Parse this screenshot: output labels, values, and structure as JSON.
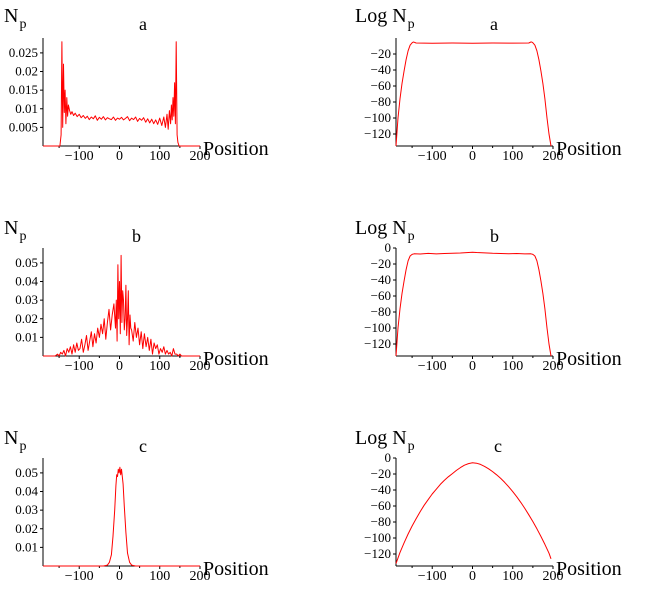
{
  "chart_data": [
    {
      "type": "line",
      "panel_label": "a",
      "ylabel": "N",
      "ylabel_sub": "p",
      "xlabel": "Position",
      "xlim": [
        -190,
        200
      ],
      "ylim": [
        0,
        0.029
      ],
      "xticks": [
        -100,
        0,
        100,
        200
      ],
      "xtick_labels": [
        "−100",
        "0",
        "100",
        "200"
      ],
      "yticks": [
        0.005,
        0.01,
        0.015,
        0.02,
        0.025
      ],
      "ytick_labels": [
        "0.005",
        "0.01",
        "0.015",
        "0.02",
        "0.025"
      ],
      "color": "#ff0000",
      "series": [
        {
          "x": [
            -190,
            -148,
            -145,
            -143,
            -141,
            -139,
            -137,
            -135,
            -133,
            -131,
            -129,
            -127,
            -124,
            -121,
            -118,
            -114,
            -110,
            -105,
            -100,
            -95,
            -90,
            -85,
            -80,
            -75,
            -70,
            -65,
            -60,
            -55,
            -50,
            -45,
            -40,
            -35,
            -30,
            -25,
            -20,
            -15,
            -10,
            -5,
            0,
            5,
            10,
            15,
            20,
            25,
            30,
            35,
            40,
            45,
            50,
            55,
            60,
            65,
            70,
            75,
            80,
            85,
            90,
            95,
            100,
            105,
            110,
            114,
            118,
            121,
            124,
            127,
            129,
            131,
            133,
            135,
            137,
            139,
            141,
            143,
            145,
            148,
            200
          ],
          "y": [
            0,
            0,
            0.003,
            0.028,
            0.005,
            0.022,
            0.009,
            0.015,
            0.006,
            0.013,
            0.008,
            0.011,
            0.0095,
            0.0085,
            0.0092,
            0.0082,
            0.0088,
            0.0079,
            0.0085,
            0.0076,
            0.0082,
            0.0074,
            0.008,
            0.0071,
            0.0078,
            0.0073,
            0.0081,
            0.0069,
            0.0077,
            0.0072,
            0.0079,
            0.007,
            0.0076,
            0.0073,
            0.0071,
            0.0078,
            0.0069,
            0.0075,
            0.0072,
            0.0077,
            0.007,
            0.0074,
            0.0079,
            0.0068,
            0.0075,
            0.0071,
            0.0078,
            0.0066,
            0.0074,
            0.0069,
            0.0076,
            0.0064,
            0.0073,
            0.0062,
            0.0072,
            0.006,
            0.007,
            0.0058,
            0.0075,
            0.0055,
            0.0078,
            0.005,
            0.0085,
            0.0045,
            0.0095,
            0.006,
            0.011,
            0.007,
            0.013,
            0.008,
            0.017,
            0.006,
            0.028,
            0.003,
            0.001,
            0,
            0
          ]
        }
      ]
    },
    {
      "type": "line",
      "panel_label": "a",
      "ylabel": "Log N",
      "ylabel_sub": "p",
      "xlabel": "Position",
      "xlim": [
        -190,
        200
      ],
      "ylim": [
        -135,
        0
      ],
      "xticks": [
        -100,
        0,
        100,
        200
      ],
      "xtick_labels": [
        "−100",
        "0",
        "100",
        "200"
      ],
      "yticks": [
        -20,
        -40,
        -60,
        -80,
        -100,
        -120
      ],
      "ytick_labels": [
        "−20",
        "−40",
        "−60",
        "−80",
        "−100",
        "−120"
      ],
      "color": "#ff0000",
      "series": [
        {
          "x": [
            -190,
            -185,
            -180,
            -175,
            -170,
            -165,
            -160,
            -155,
            -150,
            -147,
            -145,
            -140,
            -100,
            -50,
            0,
            50,
            100,
            140,
            145,
            147,
            150,
            155,
            160,
            165,
            170,
            175,
            180,
            185,
            190,
            195
          ],
          "y": [
            -135,
            -100,
            -76,
            -57,
            -41,
            -27,
            -16,
            -9,
            -6,
            -5,
            -5.2,
            -6.2,
            -6.5,
            -6.2,
            -6.5,
            -6.3,
            -6.4,
            -6.2,
            -5,
            -5,
            -6,
            -9,
            -16,
            -27,
            -41,
            -57,
            -76,
            -100,
            -120,
            -135
          ]
        }
      ]
    },
    {
      "type": "line",
      "panel_label": "b",
      "ylabel": "N",
      "ylabel_sub": "p",
      "xlabel": "Position",
      "xlim": [
        -190,
        200
      ],
      "ylim": [
        0,
        0.058
      ],
      "xticks": [
        -100,
        0,
        100,
        200
      ],
      "xtick_labels": [
        "−100",
        "0",
        "100",
        "200"
      ],
      "yticks": [
        0.01,
        0.02,
        0.03,
        0.04,
        0.05
      ],
      "ytick_labels": [
        "0.01",
        "0.02",
        "0.03",
        "0.04",
        "0.05"
      ],
      "color": "#ff0000",
      "series": [
        {
          "x": [
            -190,
            -160,
            -154,
            -150,
            -146,
            -142,
            -138,
            -134,
            -130,
            -126,
            -122,
            -118,
            -114,
            -110,
            -106,
            -102,
            -98,
            -94,
            -90,
            -86,
            -82,
            -78,
            -74,
            -70,
            -66,
            -62,
            -58,
            -54,
            -50,
            -46,
            -42,
            -38,
            -34,
            -30,
            -26,
            -22,
            -18,
            -14,
            -10,
            -8,
            -6,
            -4,
            -2,
            0,
            2,
            4,
            6,
            8,
            10,
            12,
            14,
            16,
            18,
            20,
            22,
            24,
            26,
            28,
            30,
            34,
            38,
            42,
            46,
            50,
            54,
            58,
            62,
            66,
            70,
            74,
            78,
            82,
            86,
            90,
            94,
            98,
            102,
            106,
            110,
            114,
            118,
            122,
            126,
            130,
            134,
            138,
            142,
            146,
            150,
            154,
            160,
            200
          ],
          "y": [
            0,
            0,
            0.001,
            0,
            0.002,
            0.001,
            0.003,
            0,
            0.004,
            0.002,
            0.005,
            0.001,
            0.006,
            0.002,
            0.007,
            0.003,
            0.004,
            0.009,
            0.002,
            0.006,
            0.011,
            0.003,
            0.008,
            0.013,
            0.005,
            0.012,
            0.007,
            0.015,
            0.01,
            0.017,
            0.012,
            0.02,
            0.009,
            0.018,
            0.025,
            0.014,
            0.022,
            0.028,
            0.015,
            0.03,
            0.008,
            0.049,
            0.02,
            0.04,
            0.012,
            0.054,
            0.018,
            0.035,
            0.03,
            0.014,
            0.02,
            0.038,
            0.011,
            0.02,
            0.035,
            0.006,
            0.022,
            0.015,
            0.014,
            0.008,
            0.018,
            0.01,
            0.015,
            0.006,
            0.013,
            0.004,
            0.012,
            0.005,
            0.01,
            0.003,
            0.009,
            0.001,
            0.007,
            0.004,
            0.006,
            0.001,
            0.004,
            0.002,
            0.005,
            0.001,
            0.003,
            0.001,
            0.002,
            0,
            0.004,
            0.001,
            0.001,
            0,
            0.001,
            0,
            0,
            0
          ]
        }
      ]
    },
    {
      "type": "line",
      "panel_label": "b",
      "ylabel": "Log N",
      "ylabel_sub": "p",
      "xlabel": "Position",
      "xlim": [
        -190,
        200
      ],
      "ylim": [
        -135,
        0
      ],
      "xticks": [
        -100,
        0,
        100,
        200
      ],
      "xtick_labels": [
        "−100",
        "0",
        "100",
        "200"
      ],
      "yticks": [
        0,
        -20,
        -40,
        -60,
        -80,
        -100,
        -120
      ],
      "ytick_labels": [
        "0",
        "−20",
        "−40",
        "−60",
        "−80",
        "−100",
        "−120"
      ],
      "color": "#ff0000",
      "series": [
        {
          "x": [
            -190,
            -185,
            -180,
            -175,
            -170,
            -165,
            -160,
            -155,
            -150,
            -145,
            -130,
            -110,
            -90,
            -70,
            -50,
            -30,
            -10,
            0,
            10,
            30,
            50,
            70,
            90,
            110,
            130,
            145,
            150,
            155,
            160,
            165,
            170,
            175,
            180,
            185,
            190,
            195
          ],
          "y": [
            -135,
            -100,
            -76,
            -57,
            -41,
            -27,
            -16,
            -10,
            -8,
            -7.2,
            -7.5,
            -6.8,
            -7.4,
            -6.9,
            -6.5,
            -6.2,
            -5.6,
            -5.2,
            -5.6,
            -6.1,
            -6.6,
            -6.9,
            -7.3,
            -6.9,
            -7.4,
            -7.2,
            -8,
            -10,
            -16,
            -27,
            -41,
            -57,
            -76,
            -100,
            -120,
            -135
          ]
        }
      ]
    },
    {
      "type": "line",
      "panel_label": "c",
      "ylabel": "N",
      "ylabel_sub": "p",
      "xlabel": "Position",
      "xlim": [
        -190,
        200
      ],
      "ylim": [
        0,
        0.058
      ],
      "xticks": [
        -100,
        0,
        100,
        200
      ],
      "xtick_labels": [
        "−100",
        "0",
        "100",
        "200"
      ],
      "yticks": [
        0.01,
        0.02,
        0.03,
        0.04,
        0.05
      ],
      "ytick_labels": [
        "0.01",
        "0.02",
        "0.03",
        "0.04",
        "0.05"
      ],
      "color": "#ff0000",
      "series": [
        {
          "x": [
            -190,
            -40,
            -30,
            -25,
            -20,
            -16,
            -12,
            -9,
            -7,
            -5,
            -3,
            -1,
            1,
            3,
            5,
            7,
            9,
            12,
            16,
            20,
            25,
            30,
            40,
            200
          ],
          "y": [
            0,
            0,
            0.0005,
            0.002,
            0.006,
            0.016,
            0.03,
            0.043,
            0.049,
            0.048,
            0.052,
            0.05,
            0.053,
            0.049,
            0.052,
            0.048,
            0.044,
            0.032,
            0.018,
            0.007,
            0.002,
            0.0005,
            0,
            0
          ]
        }
      ]
    },
    {
      "type": "line",
      "panel_label": "c",
      "ylabel": "Log N",
      "ylabel_sub": "p",
      "xlabel": "Position",
      "xlim": [
        -190,
        200
      ],
      "ylim": [
        -135,
        0
      ],
      "xticks": [
        -100,
        0,
        100,
        200
      ],
      "xtick_labels": [
        "−100",
        "0",
        "100",
        "200"
      ],
      "yticks": [
        0,
        -20,
        -40,
        -60,
        -80,
        -100,
        -120
      ],
      "ytick_labels": [
        "0",
        "−20",
        "−40",
        "−60",
        "−80",
        "−100",
        "−120"
      ],
      "color": "#ff0000",
      "series": [
        {
          "x": [
            -190,
            -180,
            -170,
            -160,
            -150,
            -140,
            -130,
            -120,
            -110,
            -100,
            -90,
            -80,
            -70,
            -60,
            -50,
            -40,
            -30,
            -20,
            -10,
            0,
            10,
            20,
            30,
            40,
            50,
            60,
            70,
            80,
            90,
            100,
            110,
            120,
            130,
            140,
            150,
            160,
            170,
            180,
            190,
            195
          ],
          "y": [
            -132,
            -118,
            -106,
            -95,
            -85,
            -76,
            -67,
            -59,
            -52,
            -45,
            -39,
            -33,
            -28,
            -23.5,
            -19.5,
            -15.5,
            -12,
            -9,
            -7,
            -6,
            -6.5,
            -8,
            -10.5,
            -13.5,
            -17,
            -21,
            -25.5,
            -30.5,
            -36,
            -42,
            -48.5,
            -55.5,
            -63,
            -71,
            -79.5,
            -88.5,
            -98,
            -108,
            -119,
            -126
          ]
        }
      ]
    }
  ]
}
